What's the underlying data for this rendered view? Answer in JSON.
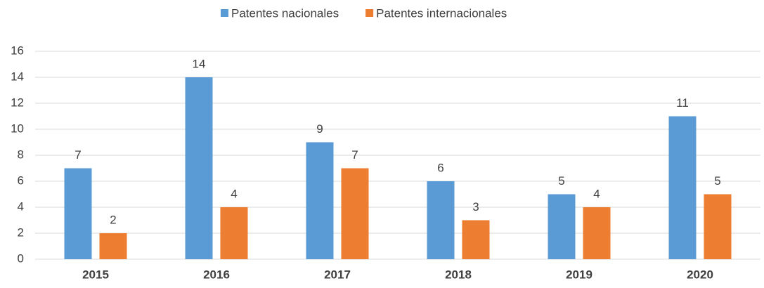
{
  "chart_data": {
    "type": "bar",
    "categories": [
      "2015",
      "2016",
      "2017",
      "2018",
      "2019",
      "2020"
    ],
    "series": [
      {
        "name": "Patentes nacionales",
        "color": "#5b9bd5",
        "values": [
          7,
          14,
          9,
          6,
          5,
          11
        ]
      },
      {
        "name": "Patentes internacionales",
        "color": "#ed7d31",
        "values": [
          2,
          4,
          7,
          3,
          4,
          5
        ]
      }
    ],
    "ylim": [
      0,
      16
    ],
    "yticks": [
      0,
      2,
      4,
      6,
      8,
      10,
      12,
      14,
      16
    ],
    "grid": true,
    "legend": "top"
  }
}
